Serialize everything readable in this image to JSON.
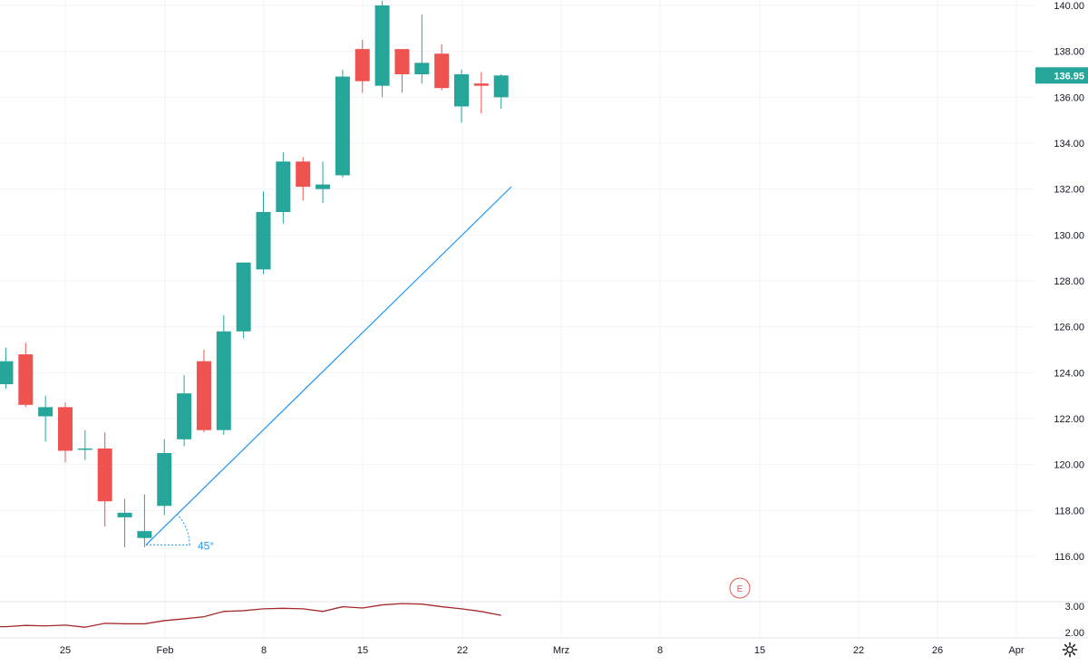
{
  "colors": {
    "up": "#26a69a",
    "down": "#ef5350",
    "grid": "#f0f3fa",
    "axis_text": "#131722",
    "trendline": "#2196f3",
    "indicator": "#a52a2a",
    "price_tag_bg": "#26a69a",
    "price_tag_text": "#ffffff",
    "earnings_marker": "#ef5350"
  },
  "price_axis": {
    "min": 115,
    "max": 140.2,
    "ticks": [
      "116.00",
      "118.00",
      "120.00",
      "122.00",
      "124.00",
      "126.00",
      "128.00",
      "130.00",
      "132.00",
      "134.00",
      "136.00",
      "138.00",
      "140.00"
    ]
  },
  "last_price": {
    "value": 136.95,
    "label": "136.95"
  },
  "time_axis": {
    "labels": [
      {
        "label": "25",
        "date": "2021-01-25"
      },
      {
        "label": "Feb",
        "date": "2021-02-01"
      },
      {
        "label": "8",
        "date": "2021-02-08"
      },
      {
        "label": "15",
        "date": "2021-02-15"
      },
      {
        "label": "22",
        "date": "2021-02-22"
      },
      {
        "label": "Mrz",
        "date": "2021-03-01"
      },
      {
        "label": "8",
        "date": "2021-03-08"
      },
      {
        "label": "15",
        "date": "2021-03-15"
      },
      {
        "label": "22",
        "date": "2021-03-22"
      },
      {
        "label": "26",
        "date": "2021-03-26"
      },
      {
        "label": "Apr",
        "date": "2021-04-01"
      }
    ]
  },
  "annotations": {
    "trendline": {
      "start": {
        "date": "2021-01-31",
        "price": 116.5
      },
      "end": {
        "date": "2021-02-26",
        "price": 132.1
      }
    },
    "angle_label": "45°",
    "earnings_label": "E",
    "earnings_date": "2021-03-13"
  },
  "indicator_axis": {
    "min": 1.7,
    "max": 3.1,
    "ticks": [
      "2.00",
      "3.00"
    ]
  },
  "chart_data": {
    "type": "candlestick",
    "series": [
      {
        "name": "",
        "ohlc": [
          {
            "date": "2021-01-20",
            "o": 123.5,
            "h": 125.1,
            "l": 123.3,
            "c": 124.5
          },
          {
            "date": "2021-01-21",
            "o": 124.8,
            "h": 125.3,
            "l": 122.5,
            "c": 122.6
          },
          {
            "date": "2021-01-22",
            "o": 122.1,
            "h": 123.0,
            "l": 121.0,
            "c": 122.5
          },
          {
            "date": "2021-01-25",
            "o": 122.5,
            "h": 122.7,
            "l": 120.1,
            "c": 120.6
          },
          {
            "date": "2021-01-26",
            "o": 120.7,
            "h": 121.5,
            "l": 120.2,
            "c": 120.7
          },
          {
            "date": "2021-01-27",
            "o": 120.7,
            "h": 121.4,
            "l": 117.3,
            "c": 118.4
          },
          {
            "date": "2021-01-28",
            "o": 117.7,
            "h": 118.5,
            "l": 116.4,
            "c": 117.9
          },
          {
            "date": "2021-01-29",
            "o": 116.8,
            "h": 118.7,
            "l": 116.4,
            "c": 117.1
          },
          {
            "date": "2021-02-01",
            "o": 118.2,
            "h": 121.1,
            "l": 117.8,
            "c": 120.5
          },
          {
            "date": "2021-02-02",
            "o": 121.1,
            "h": 123.9,
            "l": 120.8,
            "c": 123.1
          },
          {
            "date": "2021-02-03",
            "o": 124.5,
            "h": 125.0,
            "l": 121.4,
            "c": 121.5
          },
          {
            "date": "2021-02-04",
            "o": 121.5,
            "h": 126.5,
            "l": 121.3,
            "c": 125.8
          },
          {
            "date": "2021-02-05",
            "o": 125.8,
            "h": 128.8,
            "l": 125.5,
            "c": 128.8
          },
          {
            "date": "2021-02-08",
            "o": 128.5,
            "h": 131.9,
            "l": 128.3,
            "c": 131.0
          },
          {
            "date": "2021-02-09",
            "o": 131.0,
            "h": 133.6,
            "l": 130.5,
            "c": 133.2
          },
          {
            "date": "2021-02-10",
            "o": 133.2,
            "h": 133.4,
            "l": 131.5,
            "c": 132.1
          },
          {
            "date": "2021-02-11",
            "o": 132.0,
            "h": 133.2,
            "l": 131.4,
            "c": 132.2
          },
          {
            "date": "2021-02-12",
            "o": 132.6,
            "h": 137.2,
            "l": 132.5,
            "c": 136.9
          },
          {
            "date": "2021-02-16",
            "o": 138.1,
            "h": 138.5,
            "l": 136.2,
            "c": 136.7
          },
          {
            "date": "2021-02-17",
            "o": 136.5,
            "h": 140.2,
            "l": 136.0,
            "c": 140.0
          },
          {
            "date": "2021-02-18",
            "o": 138.1,
            "h": 138.1,
            "l": 136.2,
            "c": 137.0
          },
          {
            "date": "2021-02-19",
            "o": 137.0,
            "h": 139.6,
            "l": 136.6,
            "c": 137.5
          },
          {
            "date": "2021-02-22",
            "o": 137.9,
            "h": 138.3,
            "l": 136.3,
            "c": 136.4
          },
          {
            "date": "2021-02-23",
            "o": 135.6,
            "h": 137.2,
            "l": 134.9,
            "c": 137.0
          },
          {
            "date": "2021-02-24",
            "o": 136.6,
            "h": 137.1,
            "l": 135.3,
            "c": 136.5
          },
          {
            "date": "2021-02-25",
            "o": 136.0,
            "h": 137.0,
            "l": 135.5,
            "c": 136.95
          }
        ]
      }
    ],
    "indicator": {
      "name": "",
      "points": [
        {
          "date": "2021-01-20",
          "v": 2.22
        },
        {
          "date": "2021-01-21",
          "v": 2.27
        },
        {
          "date": "2021-01-22",
          "v": 2.25
        },
        {
          "date": "2021-01-25",
          "v": 2.28
        },
        {
          "date": "2021-01-26",
          "v": 2.2
        },
        {
          "date": "2021-01-27",
          "v": 2.35
        },
        {
          "date": "2021-01-28",
          "v": 2.33
        },
        {
          "date": "2021-01-29",
          "v": 2.33
        },
        {
          "date": "2021-02-01",
          "v": 2.45
        },
        {
          "date": "2021-02-02",
          "v": 2.52
        },
        {
          "date": "2021-02-03",
          "v": 2.6
        },
        {
          "date": "2021-02-04",
          "v": 2.8
        },
        {
          "date": "2021-02-05",
          "v": 2.83
        },
        {
          "date": "2021-02-08",
          "v": 2.9
        },
        {
          "date": "2021-02-09",
          "v": 2.92
        },
        {
          "date": "2021-02-10",
          "v": 2.9
        },
        {
          "date": "2021-02-11",
          "v": 2.8
        },
        {
          "date": "2021-02-12",
          "v": 2.98
        },
        {
          "date": "2021-02-16",
          "v": 2.93
        },
        {
          "date": "2021-02-17",
          "v": 3.05
        },
        {
          "date": "2021-02-18",
          "v": 3.1
        },
        {
          "date": "2021-02-19",
          "v": 3.08
        },
        {
          "date": "2021-02-22",
          "v": 2.98
        },
        {
          "date": "2021-02-23",
          "v": 2.9
        },
        {
          "date": "2021-02-24",
          "v": 2.8
        },
        {
          "date": "2021-02-25",
          "v": 2.65
        }
      ]
    },
    "grid": true,
    "price_scale_position": "right"
  }
}
